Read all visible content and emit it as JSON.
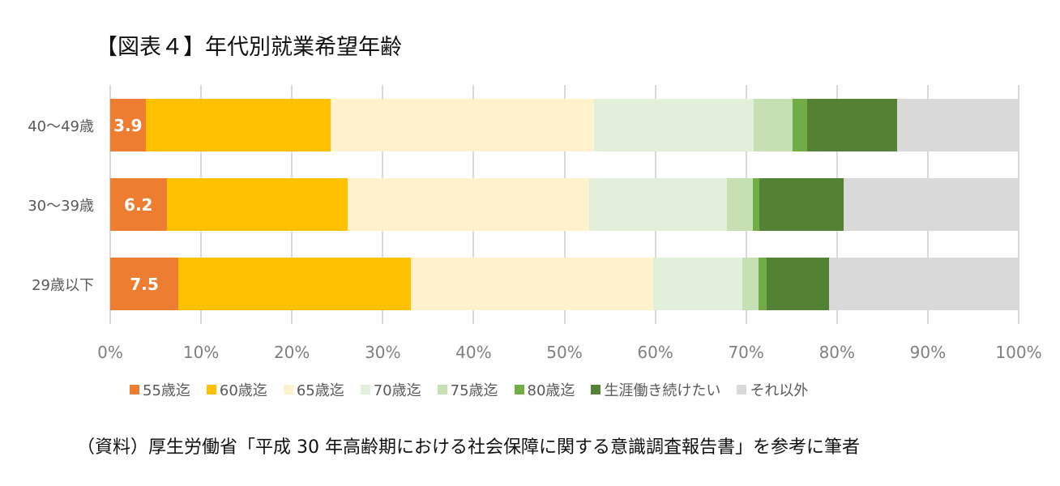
{
  "title": "【図表４】年代別就業希望年齢",
  "source": "（資料）厚生労働省「平成 30 年高齢期における社会保障に関する意識調査報告書」を参考に筆者",
  "chart_data": {
    "type": "bar",
    "orientation": "horizontal",
    "stacked": "percent",
    "title": "【図表４】年代別就業希望年齢",
    "xlabel": "",
    "ylabel": "",
    "xlim": [
      0,
      100
    ],
    "x_ticks": [
      "0%",
      "10%",
      "20%",
      "30%",
      "40%",
      "50%",
      "60%",
      "70%",
      "80%",
      "90%",
      "100%"
    ],
    "grid": "vertical",
    "legend_position": "bottom",
    "categories": [
      "40〜49歳",
      "30〜39歳",
      "29歳以下"
    ],
    "series": [
      {
        "name": "55歳迄",
        "color": "#ed7d31",
        "values": [
          3.9,
          6.2,
          7.5
        ],
        "show_labels": true
      },
      {
        "name": "60歳迄",
        "color": "#ffc000",
        "values": [
          20.4,
          19.9,
          25.6
        ]
      },
      {
        "name": "65歳迄",
        "color": "#fff2cc",
        "values": [
          29.0,
          26.6,
          26.7
        ]
      },
      {
        "name": "70歳迄",
        "color": "#e2efda",
        "values": [
          17.5,
          15.2,
          9.8
        ]
      },
      {
        "name": "75歳迄",
        "color": "#c6e0b4",
        "values": [
          4.3,
          2.8,
          1.8
        ]
      },
      {
        "name": "80歳迄",
        "color": "#70ad47",
        "values": [
          1.6,
          0.8,
          0.9
        ]
      },
      {
        "name": "生涯働き続けたい",
        "color": "#548235",
        "values": [
          9.9,
          9.2,
          6.8
        ]
      },
      {
        "name": "それ以外",
        "color": "#d9d9d9",
        "values": [
          13.4,
          19.3,
          20.9
        ]
      }
    ],
    "annotations": [
      "3.9",
      "6.2",
      "7.5"
    ]
  }
}
